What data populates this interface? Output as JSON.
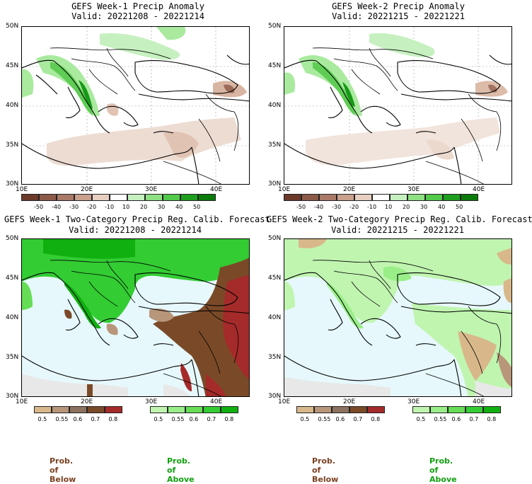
{
  "panels": [
    {
      "title": "GEFS Week-1 Precip Anomaly",
      "valid": "Valid: 20221208 - 20221214"
    },
    {
      "title": "GEFS Week-2 Precip Anomaly",
      "valid": "Valid: 20221215 - 20221221"
    },
    {
      "title": "GEFS Week-1 Two-Category Precip Reg. Calib. Forecast",
      "valid": "Valid: 20221208 - 20221214"
    },
    {
      "title": "GEFS Week-2 Two-Category Precip Reg. Calib. Forecast",
      "valid": "Valid: 20221215 - 20221221"
    }
  ],
  "axes": {
    "lat_labels": [
      "50N",
      "45N",
      "40N",
      "35N",
      "30N"
    ],
    "lon_labels": [
      "10E",
      "20E",
      "30E",
      "40E"
    ]
  },
  "anomaly_colorbar": {
    "labels": [
      "-50",
      "-40",
      "-30",
      "-20",
      "-10",
      "10",
      "20",
      "30",
      "40",
      "50"
    ],
    "colors": [
      "#6b3a2a",
      "#8c5a48",
      "#a97a68",
      "#c9a08e",
      "#e7cfc2",
      "#ffffff",
      "#c6f0c0",
      "#8fe083",
      "#52c94a",
      "#1f9e1f",
      "#0a7a0a"
    ]
  },
  "prob_colorbar_below": {
    "labels": [
      "0.5",
      "0.55",
      "0.6",
      "0.7",
      "0.8"
    ],
    "colors": [
      "#d8b88a",
      "#b8967a",
      "#8c7260",
      "#7a4a28",
      "#a52a2a"
    ]
  },
  "prob_colorbar_above": {
    "labels": [
      "0.5",
      "0.55",
      "0.6",
      "0.7",
      "0.8"
    ],
    "colors": [
      "#c0f5b0",
      "#99ee88",
      "#66dd55",
      "#33cc33",
      "#10b010"
    ]
  },
  "prob_labels": {
    "below": "Prob. of Below",
    "above": "Prob. of Above"
  },
  "colors": {
    "below_text": "#7a4020",
    "above_text": "#10a010",
    "sea": "#e6f8fb",
    "gray": "#e8e8e8"
  }
}
